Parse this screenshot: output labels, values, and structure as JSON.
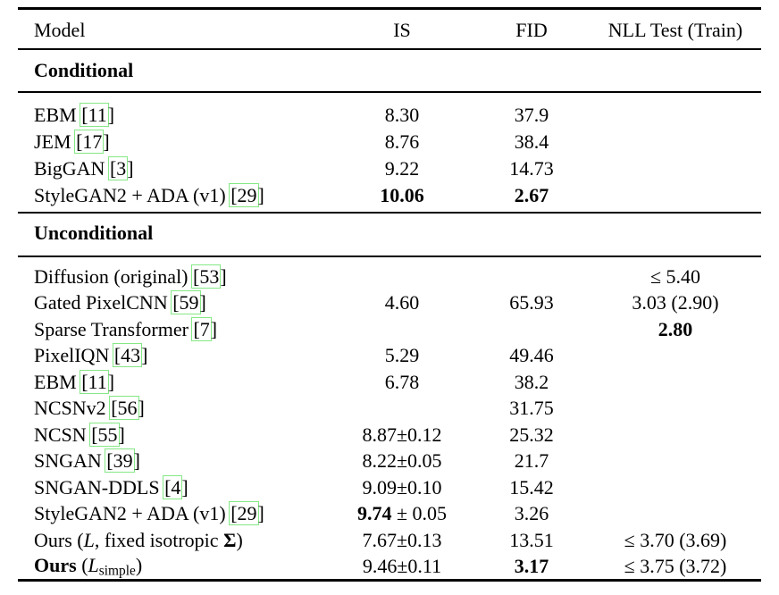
{
  "colors": {
    "background": "#ffffff",
    "text": "#000000",
    "citation_border": "#85e885"
  },
  "table": {
    "columns": [
      "Model",
      "IS",
      "FID",
      "NLL Test (Train)"
    ],
    "sections": [
      {
        "title": "Conditional",
        "rows": [
          {
            "model": [
              {
                "t": "EBM "
              },
              {
                "cite": "[11]"
              }
            ],
            "is": [
              {
                "t": "8.30"
              }
            ],
            "fid": [
              {
                "t": "37.9"
              }
            ],
            "nll": []
          },
          {
            "model": [
              {
                "t": "JEM "
              },
              {
                "cite": "[17]"
              }
            ],
            "is": [
              {
                "t": "8.76"
              }
            ],
            "fid": [
              {
                "t": "38.4"
              }
            ],
            "nll": []
          },
          {
            "model": [
              {
                "t": "BigGAN "
              },
              {
                "cite": "[3]"
              }
            ],
            "is": [
              {
                "t": "9.22"
              }
            ],
            "fid": [
              {
                "t": "14.73"
              }
            ],
            "nll": []
          },
          {
            "model": [
              {
                "t": "StyleGAN2 + ADA (v1) "
              },
              {
                "cite": "[29]"
              }
            ],
            "is": [
              {
                "t": "10.06",
                "b": true
              }
            ],
            "fid": [
              {
                "t": "2.67",
                "b": true
              }
            ],
            "nll": []
          }
        ]
      },
      {
        "title": "Unconditional",
        "rows": [
          {
            "model": [
              {
                "t": "Diffusion (original) "
              },
              {
                "cite": "[53]"
              }
            ],
            "is": [],
            "fid": [],
            "nll": [
              {
                "t": "≤ 5.40"
              }
            ]
          },
          {
            "model": [
              {
                "t": "Gated PixelCNN "
              },
              {
                "cite": "[59]"
              }
            ],
            "is": [
              {
                "t": "4.60"
              }
            ],
            "fid": [
              {
                "t": "65.93"
              }
            ],
            "nll": [
              {
                "t": "3.03 (2.90)"
              }
            ]
          },
          {
            "model": [
              {
                "t": "Sparse Transformer "
              },
              {
                "cite": "[7]"
              }
            ],
            "is": [],
            "fid": [],
            "nll": [
              {
                "t": "2.80",
                "b": true
              }
            ]
          },
          {
            "model": [
              {
                "t": "PixelIQN "
              },
              {
                "cite": "[43]"
              }
            ],
            "is": [
              {
                "t": "5.29"
              }
            ],
            "fid": [
              {
                "t": "49.46"
              }
            ],
            "nll": []
          },
          {
            "model": [
              {
                "t": "EBM "
              },
              {
                "cite": "[11]"
              }
            ],
            "is": [
              {
                "t": "6.78"
              }
            ],
            "fid": [
              {
                "t": "38.2"
              }
            ],
            "nll": []
          },
          {
            "model": [
              {
                "t": "NCSNv2 "
              },
              {
                "cite": "[56]"
              }
            ],
            "is": [],
            "fid": [
              {
                "t": "31.75"
              }
            ],
            "nll": []
          },
          {
            "model": [
              {
                "t": "NCSN "
              },
              {
                "cite": "[55]"
              }
            ],
            "is": [
              {
                "t": "8.87±0.12"
              }
            ],
            "fid": [
              {
                "t": "25.32"
              }
            ],
            "nll": []
          },
          {
            "model": [
              {
                "t": "SNGAN "
              },
              {
                "cite": "[39]"
              }
            ],
            "is": [
              {
                "t": "8.22±0.05"
              }
            ],
            "fid": [
              {
                "t": "21.7"
              }
            ],
            "nll": []
          },
          {
            "model": [
              {
                "t": "SNGAN-DDLS "
              },
              {
                "cite": "[4]"
              }
            ],
            "is": [
              {
                "t": "9.09±0.10"
              }
            ],
            "fid": [
              {
                "t": "15.42"
              }
            ],
            "nll": []
          },
          {
            "model": [
              {
                "t": "StyleGAN2 + ADA (v1) "
              },
              {
                "cite": "[29]"
              }
            ],
            "is": [
              {
                "t": "9.74",
                "b": true
              },
              {
                "t": " ± 0.05"
              }
            ],
            "fid": [
              {
                "t": "3.26"
              }
            ],
            "nll": []
          },
          {
            "model": [
              {
                "t": "Ours ("
              },
              {
                "t": "L",
                "i": true
              },
              {
                "t": ", fixed isotropic "
              },
              {
                "t": "Σ",
                "b": true
              },
              {
                "t": ")"
              }
            ],
            "is": [
              {
                "t": "7.67±0.13"
              }
            ],
            "fid": [
              {
                "t": "13.51"
              }
            ],
            "nll": [
              {
                "t": "≤ 3.70 (3.69)"
              }
            ]
          },
          {
            "model": [
              {
                "t": "Ours ",
                "b": true
              },
              {
                "t": "("
              },
              {
                "t": "L",
                "i": true
              },
              {
                "t": "simple",
                "sub": true
              },
              {
                "t": ")"
              }
            ],
            "is": [
              {
                "t": "9.46±0.11"
              }
            ],
            "fid": [
              {
                "t": "3.17",
                "b": true
              }
            ],
            "nll": [
              {
                "t": "≤ 3.75 (3.72)"
              }
            ]
          }
        ]
      }
    ]
  }
}
